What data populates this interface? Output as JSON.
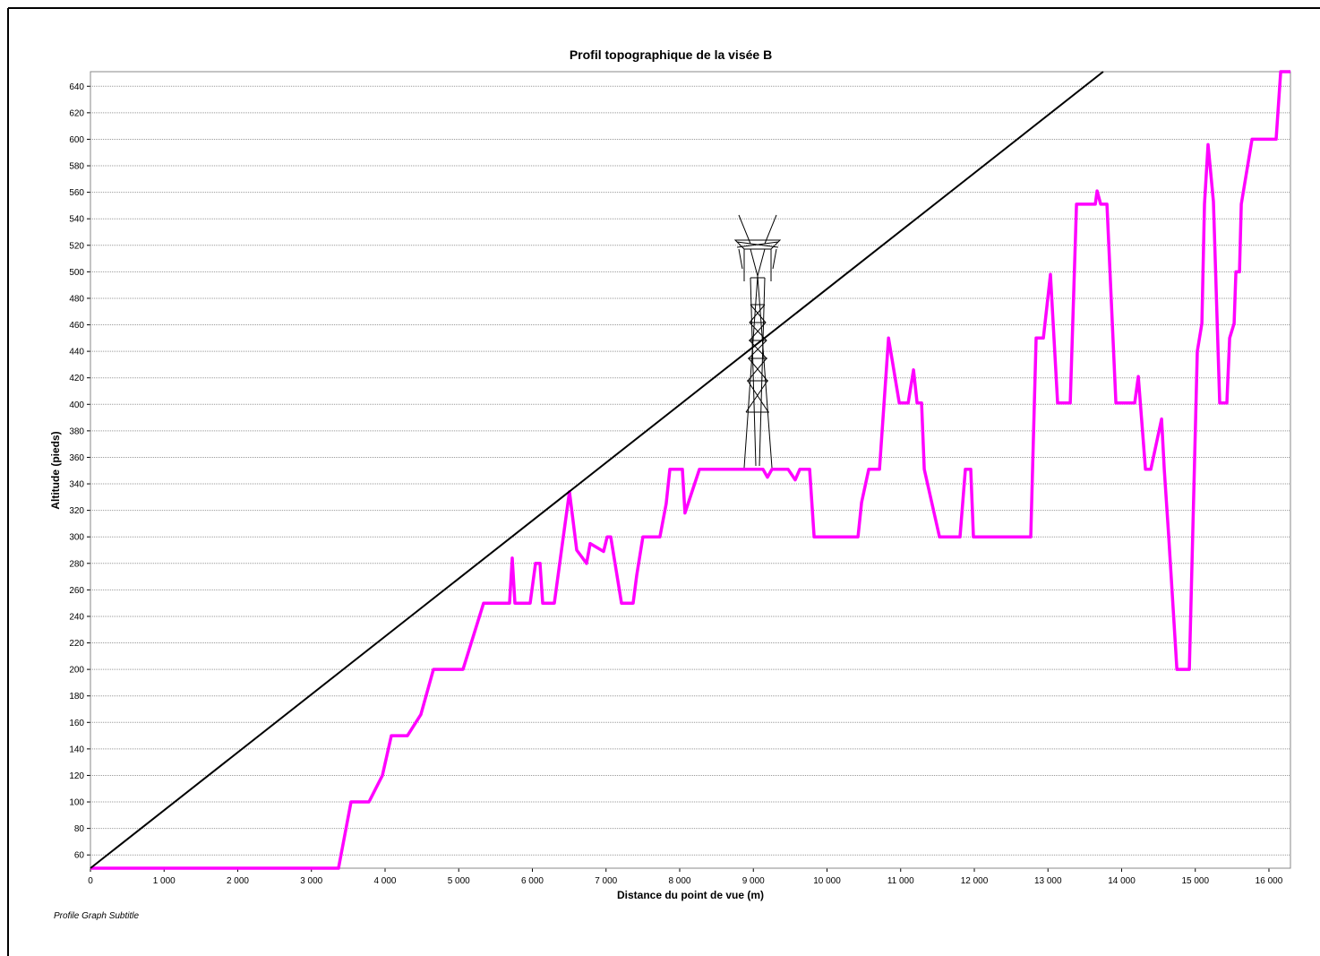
{
  "chart_data": {
    "type": "line",
    "title": "Profil topographique de la visée B",
    "subtitle": "Profile Graph Subtitle",
    "x_label": "Distance du point de vue  (m)",
    "y_label": "Altitude  (pieds)",
    "xlim": [
      0,
      16292
    ],
    "ylim": [
      50,
      651
    ],
    "xticks": [
      0,
      {
        "value": 1000,
        "label": "1 000"
      },
      {
        "value": 2000,
        "label": "2 000"
      },
      {
        "value": 3000,
        "label": "3 000"
      },
      {
        "value": 4000,
        "label": "4 000"
      },
      {
        "value": 5000,
        "label": "5 000"
      },
      {
        "value": 6000,
        "label": "6 000"
      },
      {
        "value": 7000,
        "label": "7 000"
      },
      {
        "value": 8000,
        "label": "8 000"
      },
      {
        "value": 9000,
        "label": "9 000"
      },
      {
        "value": 10000,
        "label": "10 000"
      },
      {
        "value": 11000,
        "label": "11 000"
      },
      {
        "value": 12000,
        "label": "12 000"
      },
      {
        "value": 13000,
        "label": "13 000"
      },
      {
        "value": 14000,
        "label": "14 000"
      },
      {
        "value": 15000,
        "label": "15 000"
      },
      {
        "value": 16000,
        "label": "16 000"
      }
    ],
    "yticks": [
      60,
      80,
      100,
      120,
      140,
      160,
      180,
      200,
      220,
      240,
      260,
      280,
      300,
      320,
      340,
      360,
      380,
      400,
      420,
      440,
      460,
      480,
      500,
      520,
      540,
      560,
      580,
      600,
      620,
      640
    ],
    "grid": true,
    "series": [
      {
        "color": "#ff00ff",
        "x": [
          0,
          3368,
          3538,
          3781,
          3964,
          4085,
          4304,
          4486,
          4657,
          5058,
          5337,
          5690,
          5726,
          5763,
          5970,
          6043,
          6103,
          6140,
          6298,
          6407,
          6504,
          6602,
          6736,
          6784,
          6967,
          7015,
          7064,
          7210,
          7368,
          7416,
          7501,
          7732,
          7817,
          7866,
          8036,
          8072,
          8267,
          9131,
          9191,
          9253,
          9472,
          9569,
          9630,
          9764,
          9825,
          10421,
          10470,
          10567,
          10713,
          10835,
          10981,
          11102,
          11175,
          11223,
          11284,
          11320,
          11527,
          11806,
          11879,
          11952,
          11988,
          12766,
          12839,
          12937,
          13034,
          13131,
          13302,
          13388,
          13643,
          13667,
          13716,
          13801,
          13922,
          14178,
          14226,
          14324,
          14396,
          14542,
          14579,
          14640,
          14750,
          14919,
          15028,
          15089,
          15125,
          15174,
          15247,
          15332,
          15429,
          15466,
          15527,
          15551,
          15600,
          15624,
          15770,
          16098,
          16159,
          16292
        ],
        "values": [
          50,
          50,
          100,
          100,
          120,
          150,
          150,
          166,
          200,
          200,
          250,
          250,
          284,
          250,
          250,
          280,
          280,
          250,
          250,
          295,
          334,
          290,
          280,
          295,
          289,
          300,
          300,
          250,
          250,
          271,
          300,
          300,
          325,
          351,
          351,
          318,
          351,
          351,
          345,
          351,
          351,
          343,
          351,
          351,
          300,
          300,
          326,
          351,
          351,
          450,
          401,
          401,
          426,
          401,
          401,
          351,
          300,
          300,
          351,
          351,
          300,
          300,
          450,
          450,
          498,
          401,
          401,
          551,
          551,
          561,
          551,
          551,
          401,
          401,
          421,
          351,
          351,
          389,
          351,
          300,
          200,
          200,
          440,
          461,
          551,
          596,
          553,
          401,
          401,
          450,
          461,
          500,
          500,
          551,
          600,
          600,
          651,
          651
        ]
      },
      {
        "color": "#000000",
        "x": [
          0,
          13750
        ],
        "values": [
          50,
          651
        ]
      }
    ]
  }
}
